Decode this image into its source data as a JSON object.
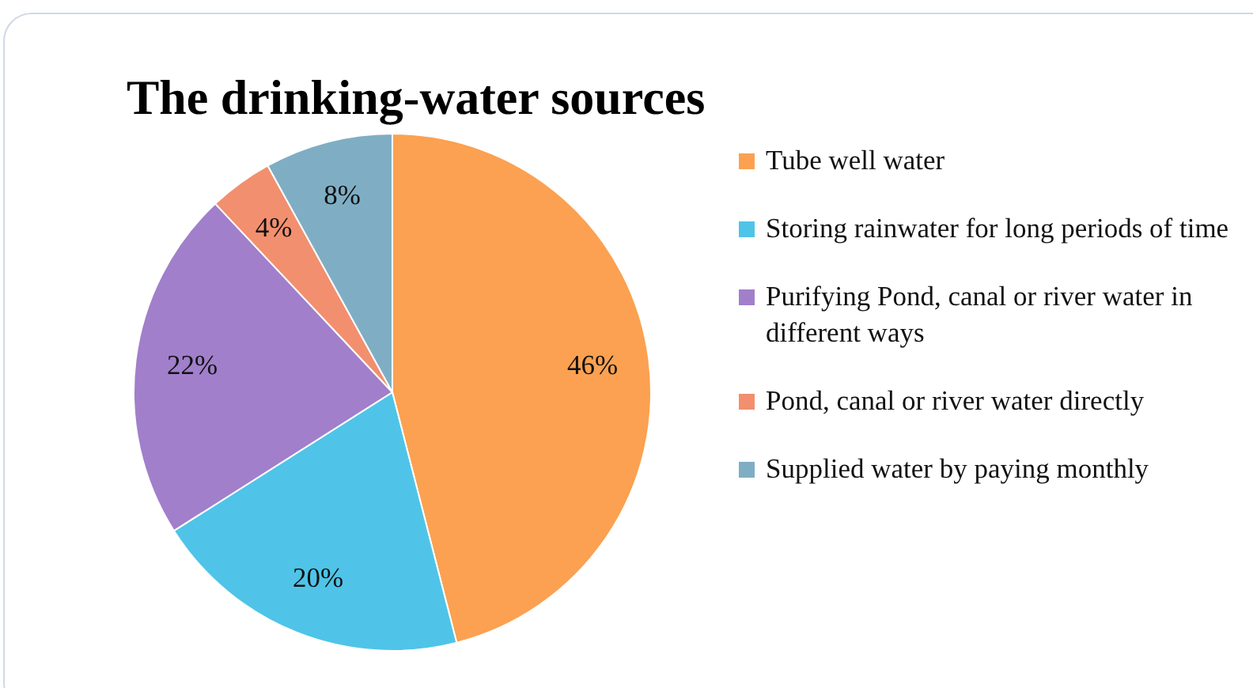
{
  "chart_data": {
    "type": "pie",
    "title": "The drinking-water sources",
    "categories": [
      "Tube well water",
      "Storing rainwater for long periods of time",
      "Purifying Pond, canal or river water in different ways",
      "Pond, canal or river water directly",
      "Supplied water by paying monthly"
    ],
    "values": [
      46,
      20,
      22,
      4,
      8
    ],
    "colors": [
      "#fba151",
      "#4fc4e8",
      "#a17fcb",
      "#f28f6e",
      "#7faec4"
    ],
    "value_labels": [
      "46%",
      "20%",
      "22%",
      "4%",
      "8%"
    ],
    "legend": "right"
  }
}
